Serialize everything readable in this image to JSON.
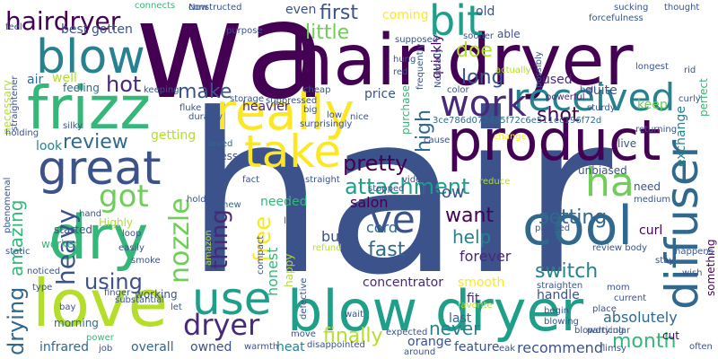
{
  "palette": {
    "dark_purple": "#440154",
    "indigo": "#482878",
    "slate_blue": "#3b528b",
    "steel_blue": "#31688e",
    "teal": "#26828e",
    "sea_green": "#1f9e89",
    "green": "#35b779",
    "lime": "#6ece58",
    "yellow_green": "#b5de2b",
    "yellow": "#fde725"
  },
  "words": [
    {
      "text": "hair",
      "color": "#3b528b"
    },
    {
      "text": "wa",
      "color": "#440154"
    },
    {
      "text": "hair dryer",
      "color": "#440154"
    },
    {
      "text": "blow dryer",
      "color": "#1f9e89"
    },
    {
      "text": "product",
      "color": "#440154"
    },
    {
      "text": "dry",
      "color": "#35b779"
    },
    {
      "text": "love",
      "color": "#b5de2b"
    },
    {
      "text": "really",
      "color": "#fde725"
    },
    {
      "text": "frizz",
      "color": "#35b779"
    },
    {
      "text": "great",
      "color": "#3b528b"
    },
    {
      "text": "cool",
      "color": "#31688e"
    },
    {
      "text": "diffuser",
      "color": "#31688e"
    },
    {
      "text": "take",
      "color": "#fde725"
    },
    {
      "text": "blow",
      "color": "#26828e"
    },
    {
      "text": "use",
      "color": "#1f9e89"
    },
    {
      "text": "received",
      "color": "#26828e"
    },
    {
      "text": "bit",
      "color": "#1f9e89"
    },
    {
      "text": "work",
      "color": "#482878"
    },
    {
      "text": "ha",
      "color": "#6ece58"
    },
    {
      "text": "ve",
      "color": "#3b528b"
    },
    {
      "text": "got",
      "color": "#6ece58"
    },
    {
      "text": "hairdryer",
      "color": "#440154"
    },
    {
      "text": "dryer",
      "color": "#482878"
    },
    {
      "text": "using",
      "color": "#3b528b"
    },
    {
      "text": "nozzle",
      "color": "#6ece58"
    },
    {
      "text": "heavy",
      "color": "#3b528b"
    },
    {
      "text": "amazing",
      "color": "#35b779"
    },
    {
      "text": "drying",
      "color": "#31688e"
    },
    {
      "text": "review",
      "color": "#31688e"
    },
    {
      "text": "hot",
      "color": "#482878"
    },
    {
      "text": "make",
      "color": "#3b528b"
    },
    {
      "text": "free",
      "color": "#fde725"
    },
    {
      "text": "thing",
      "color": "#482878"
    },
    {
      "text": "pretty",
      "color": "#440154"
    },
    {
      "text": "attachment",
      "color": "#1f9e89"
    },
    {
      "text": "first",
      "color": "#3b528b"
    },
    {
      "text": "little",
      "color": "#6ece58"
    },
    {
      "text": "long",
      "color": "#3b528b"
    },
    {
      "text": "doe",
      "color": "#b5de2b"
    },
    {
      "text": "high",
      "color": "#31688e"
    },
    {
      "text": "shot",
      "color": "#440154"
    },
    {
      "text": "work",
      "color": "#440154"
    },
    {
      "text": "fast",
      "color": "#31688e"
    },
    {
      "text": "want",
      "color": "#440154"
    },
    {
      "text": "help",
      "color": "#26828e"
    },
    {
      "text": "setting",
      "color": "#31688e"
    },
    {
      "text": "switch",
      "color": "#26828e"
    },
    {
      "text": "month",
      "color": "#35b779"
    },
    {
      "text": "finally",
      "color": "#b5de2b"
    },
    {
      "text": "never",
      "color": "#26828e"
    },
    {
      "text": "recommend",
      "color": "#3b528b"
    },
    {
      "text": "absolutely",
      "color": "#31688e"
    },
    {
      "text": "know",
      "color": "#3b528b"
    },
    {
      "text": "salon",
      "color": "#440154"
    },
    {
      "text": "built",
      "color": "#3b528b"
    },
    {
      "text": "cord",
      "color": "#31688e"
    },
    {
      "text": "honest",
      "color": "#35b779"
    },
    {
      "text": "forever",
      "color": "#482878"
    },
    {
      "text": "smooth",
      "color": "#fde725"
    },
    {
      "text": "concentrator",
      "color": "#482878"
    },
    {
      "text": "fit",
      "color": "#482878"
    },
    {
      "text": "last",
      "color": "#31688e"
    },
    {
      "text": "orange",
      "color": "#3b528b"
    },
    {
      "text": "feature",
      "color": "#3b528b"
    },
    {
      "text": "handle",
      "color": "#3b528b"
    },
    {
      "text": "curl",
      "color": "#440154"
    },
    {
      "text": "quite",
      "color": "#3b528b"
    },
    {
      "text": "keep",
      "color": "#6ece58"
    },
    {
      "text": "price",
      "color": "#3b528b"
    },
    {
      "text": "heavier",
      "color": "#482878"
    },
    {
      "text": "air",
      "color": "#31688e"
    },
    {
      "text": "well",
      "color": "#b5de2b"
    },
    {
      "text": "look",
      "color": "#26828e"
    },
    {
      "text": "getting",
      "color": "#b5de2b"
    },
    {
      "text": "even",
      "color": "#3b528b"
    },
    {
      "text": "coming",
      "color": "#fde725"
    },
    {
      "text": "old",
      "color": "#3b528b"
    },
    {
      "text": "best",
      "color": "#3b528b"
    },
    {
      "text": "gotten",
      "color": "#3b528b"
    },
    {
      "text": "started",
      "color": "#3b528b"
    },
    {
      "text": "Highly",
      "color": "#b5de2b"
    },
    {
      "text": "worked",
      "color": "#35b779"
    },
    {
      "text": "morning",
      "color": "#31688e"
    },
    {
      "text": "working",
      "color": "#3b528b"
    },
    {
      "text": "overall",
      "color": "#31688e"
    },
    {
      "text": "owned",
      "color": "#3b528b"
    },
    {
      "text": "heat",
      "color": "#26828e"
    },
    {
      "text": "infrared",
      "color": "#31688e"
    },
    {
      "text": "needed",
      "color": "#35b779"
    },
    {
      "text": "guess",
      "color": "#3b528b"
    },
    {
      "text": "extra",
      "color": "#3b528b"
    },
    {
      "text": "happy",
      "color": "#b5de2b"
    },
    {
      "text": "feeling",
      "color": "#31688e"
    },
    {
      "text": "used",
      "color": "#482878"
    },
    {
      "text": "live",
      "color": "#3b528b"
    },
    {
      "text": "unbiased",
      "color": "#3b528b"
    },
    {
      "text": "need",
      "color": "#3b528b"
    },
    {
      "text": "cut",
      "color": "#440154"
    },
    {
      "text": "often",
      "color": "#3b528b"
    },
    {
      "text": "exchange",
      "color": "#26828e"
    },
    {
      "text": "perfect",
      "color": "#35b779"
    },
    {
      "text": "something",
      "color": "#440154"
    },
    {
      "text": "able",
      "color": "#3b528b"
    },
    {
      "text": "quickly",
      "color": "#440154"
    },
    {
      "text": "purchase",
      "color": "#35b779"
    },
    {
      "text": "necessary",
      "color": "#b5de2b"
    },
    {
      "text": "amazon",
      "color": "#b5de2b"
    },
    {
      "text": "loved",
      "color": "#31688e"
    },
    {
      "text": "new",
      "color": "#31688e"
    },
    {
      "text": "disappointed",
      "color": "#3b528b"
    },
    {
      "text": "expected",
      "color": "#3b528b"
    },
    {
      "text": "stopped",
      "color": "#3b528b"
    },
    {
      "text": "refund",
      "color": "#b5de2b"
    },
    {
      "text": "smoke",
      "color": "#3b528b"
    },
    {
      "text": "defective",
      "color": "#3b528b"
    },
    {
      "text": "pleased",
      "color": "#3b528b"
    },
    {
      "text": "thought",
      "color": "#3b528b"
    },
    {
      "text": "powerful",
      "color": "#482878"
    },
    {
      "text": "sturdy",
      "color": "#3b528b"
    },
    {
      "text": "returning",
      "color": "#3b528b"
    },
    {
      "text": "sucking",
      "color": "#3b528b"
    },
    {
      "text": "constructed",
      "color": "#3b528b"
    },
    {
      "text": "connects",
      "color": "#35b779"
    },
    {
      "text": "sooner",
      "color": "#3b528b"
    },
    {
      "text": "supposed",
      "color": "#3b528b"
    },
    {
      "text": "purpose",
      "color": "#3b528b"
    },
    {
      "text": "storage",
      "color": "#3b528b"
    },
    {
      "text": "big",
      "color": "#3b528b"
    },
    {
      "text": "cheap",
      "color": "#3b528b"
    },
    {
      "text": "fluke",
      "color": "#3b528b"
    },
    {
      "text": "durably",
      "color": "#3b528b"
    },
    {
      "text": "silky",
      "color": "#3b528b"
    },
    {
      "text": "surprisingly",
      "color": "#3b528b"
    },
    {
      "text": "nice",
      "color": "#3b528b"
    },
    {
      "text": "straight",
      "color": "#3b528b"
    },
    {
      "text": "reduce",
      "color": "#b5de2b"
    },
    {
      "text": "light",
      "color": "#3b528b"
    },
    {
      "text": "medium",
      "color": "#3b528b"
    },
    {
      "text": "straighten",
      "color": "#3b528b"
    },
    {
      "text": "happens",
      "color": "#3b528b"
    },
    {
      "text": "stay",
      "color": "#3b528b"
    },
    {
      "text": "finger",
      "color": "#3b528b"
    },
    {
      "text": "substantial",
      "color": "#3b528b"
    },
    {
      "text": "compact",
      "color": "#3b528b"
    },
    {
      "text": "let",
      "color": "#3b528b"
    },
    {
      "text": "mom",
      "color": "#3b528b"
    },
    {
      "text": "current",
      "color": "#3b528b"
    },
    {
      "text": "particular",
      "color": "#3b528b"
    },
    {
      "text": "place",
      "color": "#3b528b"
    },
    {
      "text": "begin",
      "color": "#3b528b"
    },
    {
      "text": "blowing",
      "color": "#3b528b"
    },
    {
      "text": "blowdrying",
      "color": "#3b528b"
    },
    {
      "text": "flimsy",
      "color": "#3b528b"
    },
    {
      "text": "around",
      "color": "#3b528b"
    },
    {
      "text": "job",
      "color": "#3b528b"
    },
    {
      "text": "warmth",
      "color": "#3b528b"
    },
    {
      "text": "move",
      "color": "#3b528b"
    },
    {
      "text": "favorite",
      "color": "#b5de2b"
    },
    {
      "text": "power",
      "color": "#35b779"
    },
    {
      "text": "hold",
      "color": "#3b528b"
    },
    {
      "text": "hand",
      "color": "#3b528b"
    },
    {
      "text": "holding",
      "color": "#3b528b"
    },
    {
      "text": "type",
      "color": "#3b528b"
    },
    {
      "text": "static",
      "color": "#3b528b"
    },
    {
      "text": "noticed",
      "color": "#3b528b"
    },
    {
      "text": "loop",
      "color": "#3b528b"
    },
    {
      "text": "easily",
      "color": "#3b528b"
    },
    {
      "text": "keeping",
      "color": "#3b528b"
    },
    {
      "text": "ball",
      "color": "#3b528b"
    },
    {
      "text": "curly",
      "color": "#3b528b"
    },
    {
      "text": "rid",
      "color": "#3b528b"
    },
    {
      "text": "longest",
      "color": "#3b528b"
    },
    {
      "text": "forcefulness",
      "color": "#3b528b"
    },
    {
      "text": "color",
      "color": "#3b528b"
    },
    {
      "text": "Normally",
      "color": "#3b528b"
    },
    {
      "text": "red",
      "color": "#3b528b"
    },
    {
      "text": "hung",
      "color": "#3b528b"
    },
    {
      "text": "actually",
      "color": "#b5de2b"
    },
    {
      "text": "frequently",
      "color": "#3b528b"
    },
    {
      "text": "cause",
      "color": "#3b528b"
    },
    {
      "text": "change",
      "color": "#fde725"
    },
    {
      "text": "3ce786d0724d5f72c6e511ec196f72d",
      "color": "#31688e"
    },
    {
      "text": "review body",
      "color": "#3b528b"
    },
    {
      "text": "eak",
      "color": "#3b528b"
    },
    {
      "text": "lo",
      "color": "#3b528b"
    },
    {
      "text": "fact",
      "color": "#3b528b"
    },
    {
      "text": "low",
      "color": "#3b528b"
    },
    {
      "text": "feel",
      "color": "#3b528b"
    },
    {
      "text": "phenomenal",
      "color": "#3b528b"
    },
    {
      "text": "straightener",
      "color": "#3b528b"
    },
    {
      "text": "wish",
      "color": "#3b528b"
    },
    {
      "text": "suppressed",
      "color": "#3b528b"
    },
    {
      "text": "wait",
      "color": "#3b528b"
    },
    {
      "text": "bay",
      "color": "#3b528b"
    },
    {
      "text": "possibly",
      "color": "#3b528b"
    },
    {
      "text": "Now",
      "color": "#3b528b"
    },
    {
      "text": "video",
      "color": "#3b528b"
    }
  ]
}
